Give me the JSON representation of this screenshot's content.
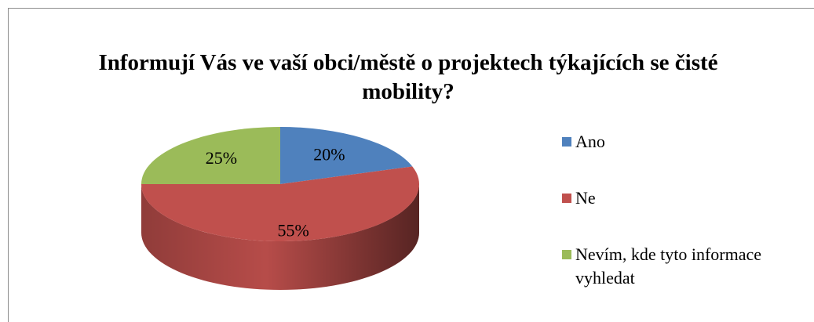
{
  "chart_data": {
    "type": "pie3d",
    "title": "Informují Vás ve vaší obci/městě o projektech týkajících se čisté mobility?",
    "categories": [
      "Ano",
      "Ne",
      "Nevím, kde tyto informace vyhledat"
    ],
    "values": [
      20,
      55,
      25
    ],
    "value_labels": [
      "20%",
      "55%",
      "25%"
    ],
    "colors": [
      "#4f81bd",
      "#c0504d",
      "#9bbb59"
    ],
    "legend": "right"
  }
}
